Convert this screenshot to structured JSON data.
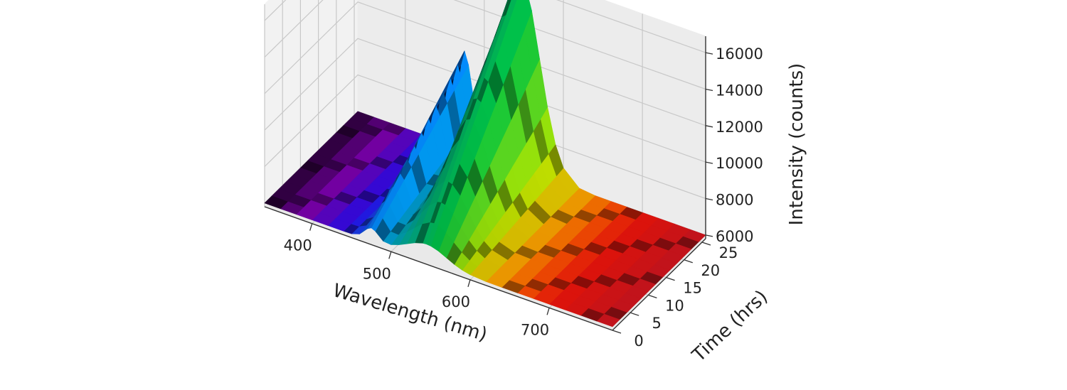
{
  "chart_data": {
    "type": "surface-3d",
    "xlabel": "Wavelength (nm)",
    "ylabel": "Time (hrs)",
    "zlabel": "Intensity (counts)",
    "x_ticks": [
      400,
      500,
      600,
      700
    ],
    "y_ticks": [
      0,
      5,
      10,
      15,
      20,
      25
    ],
    "z_ticks": [
      6000,
      8000,
      10000,
      12000,
      14000,
      16000
    ],
    "x_tick_labels": [
      "400",
      "500",
      "600",
      "700"
    ],
    "y_tick_labels": [
      "0",
      "5",
      "10",
      "15",
      "20",
      "25"
    ],
    "z_tick_labels": [
      "6000",
      "8000",
      "10000",
      "12000",
      "14000",
      "16000"
    ],
    "xlim": [
      340,
      780
    ],
    "ylim": [
      0,
      26
    ],
    "zlim": [
      5800,
      16900
    ],
    "grid": true,
    "colormap": "spectral (wavelength-mapped: violet to red)",
    "series_profile": {
      "baseline_counts": 6000,
      "peaks": [
        {
          "wavelength_nm": 475,
          "width_nm": 12,
          "height_counts_at_0h": 700,
          "height_counts_at_26h": 5200
        },
        {
          "wavelength_nm": 545,
          "width_nm": 35,
          "height_counts_at_0h": 900,
          "height_counts_at_26h": 10700
        }
      ],
      "wavelength_samples_nm": [
        340,
        360,
        380,
        400,
        420,
        440,
        450,
        460,
        470,
        475,
        480,
        490,
        500,
        510,
        520,
        530,
        540,
        545,
        550,
        560,
        570,
        580,
        590,
        600,
        620,
        640,
        660,
        680,
        700,
        720,
        740,
        760,
        780
      ],
      "time_samples_hrs": [
        0,
        2,
        4,
        6,
        8,
        10,
        12,
        14,
        16,
        18,
        20,
        22,
        24,
        26
      ]
    }
  }
}
